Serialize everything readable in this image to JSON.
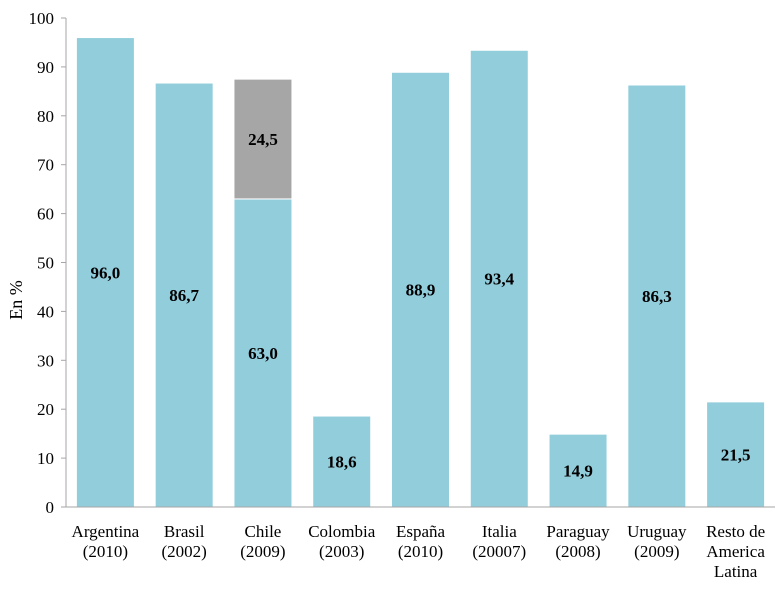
{
  "chart_data": {
    "type": "bar",
    "stacked": true,
    "categories": [
      [
        "Argentina",
        "(2010)"
      ],
      [
        "Brasil",
        "(2002)"
      ],
      [
        "Chile",
        "(2009)"
      ],
      [
        "Colombia",
        "(2003)"
      ],
      [
        "España",
        "(2010)"
      ],
      [
        "Italia",
        "(20007)"
      ],
      [
        "Paraguay",
        "(2008)"
      ],
      [
        "Uruguay",
        "(2009)"
      ],
      [
        "Resto de",
        "America",
        "Latina"
      ]
    ],
    "series": [
      {
        "color": "#92CDDC",
        "values": [
          96.0,
          86.7,
          63.0,
          18.6,
          88.9,
          93.4,
          14.9,
          86.3,
          21.5
        ],
        "labels": [
          "96,0",
          "86,7",
          "63,0",
          "18,6",
          "88,9",
          "93,4",
          "14,9",
          "86,3",
          "21,5"
        ]
      },
      {
        "color": "#A6A6A6",
        "values": [
          0,
          0,
          24.5,
          0,
          0,
          0,
          0,
          0,
          0
        ],
        "labels": [
          "",
          "",
          "24,5",
          "",
          "",
          "",
          "",
          "",
          ""
        ]
      }
    ],
    "title": "",
    "xlabel": "",
    "ylabel": "En %",
    "ylim": [
      0,
      100
    ],
    "yticks": [
      0,
      10,
      20,
      30,
      40,
      50,
      60,
      70,
      80,
      90,
      100
    ],
    "grid": false,
    "legend": "none"
  }
}
